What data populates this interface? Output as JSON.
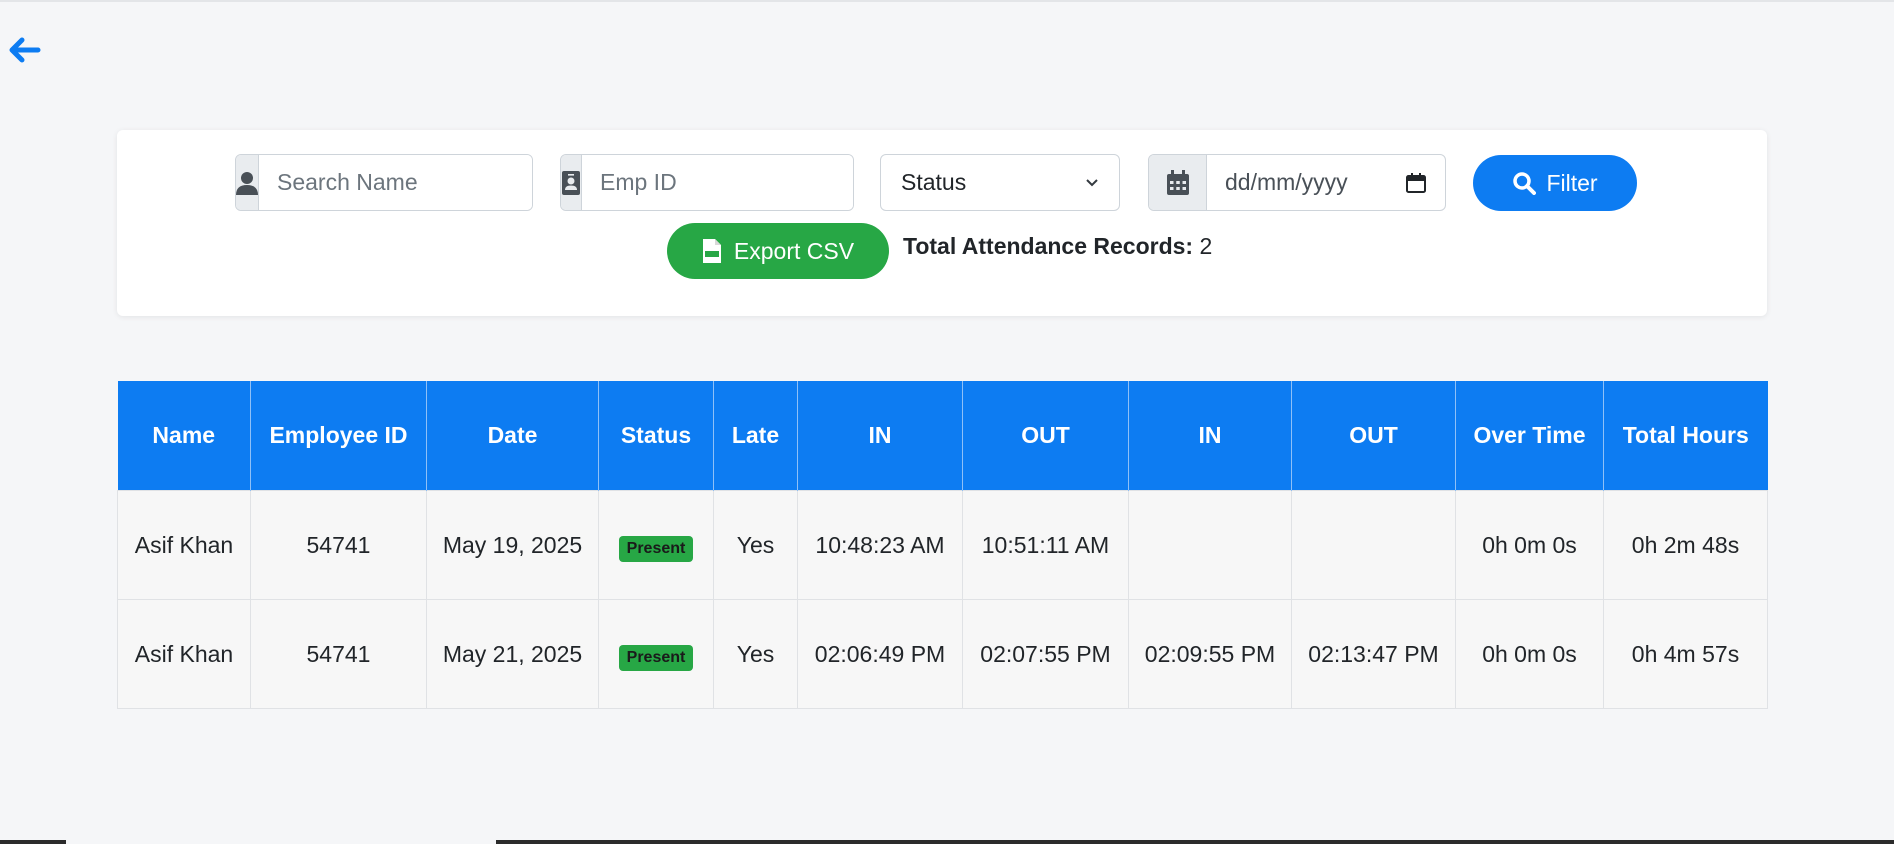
{
  "nav": {
    "back_icon": "arrow-left-icon"
  },
  "filters": {
    "name_placeholder": "Search Name",
    "empid_placeholder": "Emp ID",
    "status_value": "Status",
    "date_value": "dd/mm/yyyy",
    "filter_label": "Filter",
    "export_label": "Export CSV",
    "total_label": "Total Attendance Records:",
    "total_value": "2"
  },
  "colors": {
    "primary": "#0d7cf2",
    "success": "#27a745"
  },
  "table": {
    "headers": {
      "name": "Name",
      "emp_id": "Employee ID",
      "date": "Date",
      "status": "Status",
      "late": "Late",
      "in1": "IN",
      "out1": "OUT",
      "in2": "IN",
      "out2": "OUT",
      "overtime": "Over Time",
      "total_hours": "Total Hours"
    },
    "rows": [
      {
        "name": "Asif Khan",
        "emp_id": "54741",
        "date": "May 19, 2025",
        "status": "Present",
        "late": "Yes",
        "in1": "10:48:23 AM",
        "out1": "10:51:11 AM",
        "in2": "",
        "out2": "",
        "overtime": "0h 0m 0s",
        "total_hours": "0h 2m 48s"
      },
      {
        "name": "Asif Khan",
        "emp_id": "54741",
        "date": "May 21, 2025",
        "status": "Present",
        "late": "Yes",
        "in1": "02:06:49 PM",
        "out1": "02:07:55 PM",
        "in2": "02:09:55 PM",
        "out2": "02:13:47 PM",
        "overtime": "0h 0m 0s",
        "total_hours": "0h 4m 57s"
      }
    ]
  }
}
